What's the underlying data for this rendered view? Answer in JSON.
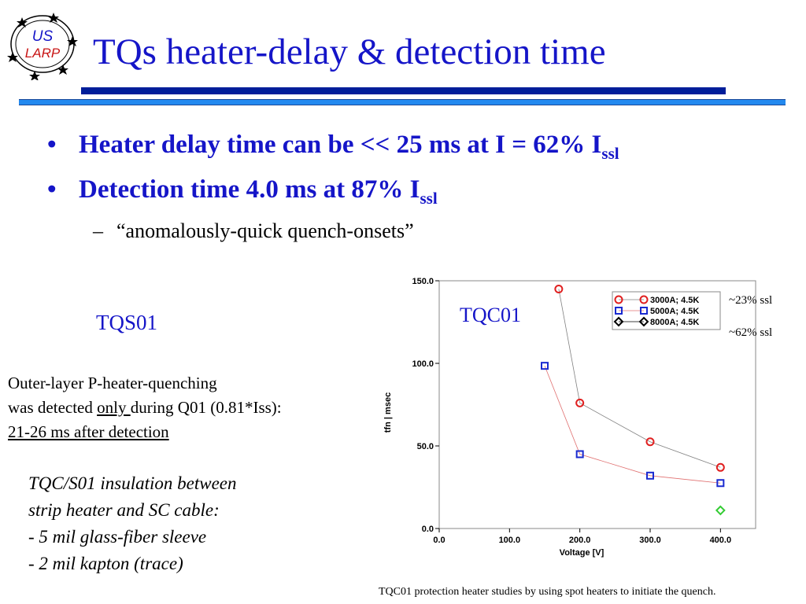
{
  "logo": {
    "line1": "US",
    "line2": "LARP"
  },
  "title": "TQs heater-delay & detection time",
  "bullets": [
    {
      "marker": "•",
      "text": "Heater delay time can be << 25 ms at I = 62% I",
      "sub": "ssl"
    },
    {
      "marker": "•",
      "text": "Detection time 4.0 ms at 87% I",
      "sub": "ssl"
    }
  ],
  "sub_bullet": {
    "marker": "–",
    "text": "“anomalously-quick quench-onsets”"
  },
  "tqs_label": "TQS01",
  "outer_text": {
    "line1": "Outer-layer P-heater-quenching",
    "line2_pre": "was detected ",
    "line2_u": "only ",
    "line2_post": "during Q01 (0.81*Iss):",
    "line3": "21-26 ms after detection"
  },
  "insulation": [
    "TQC/S01 insulation between",
    "strip heater and SC cable:",
    "- 5 mil glass-fiber sleeve",
    "- 2 mil kapton (trace)"
  ],
  "tqc_label": "TQC01",
  "ssl_labels": [
    "~23% ssl",
    "~62% ssl"
  ],
  "caption": "TQC01 protection heater studies by  using spot heaters to initiate the quench.",
  "chart_data": {
    "type": "line",
    "xlabel": "Voltage [V]",
    "ylabel": "tfn |  msec",
    "xlim": [
      0,
      450
    ],
    "ylim": [
      0,
      150
    ],
    "xticks": [
      "0.0",
      "100.0",
      "200.0",
      "300.0",
      "400.0"
    ],
    "yticks": [
      "0.0",
      "50.0",
      "100.0",
      "150.0"
    ],
    "legend_position": "top-right",
    "series": [
      {
        "name": "3000A; 4.5K",
        "marker": "circle",
        "color": "#e02020",
        "line_color": "#808080",
        "x": [
          170,
          200,
          300,
          400
        ],
        "y": [
          145,
          76,
          52.5,
          37
        ]
      },
      {
        "name": "5000A; 4.5K",
        "marker": "square",
        "color": "#1a2ad0",
        "line_color": "#e07070",
        "x": [
          150,
          200,
          300,
          400
        ],
        "y": [
          98.5,
          45,
          32,
          27.5
        ]
      },
      {
        "name": "8000A; 4.5K",
        "marker": "diamond",
        "color": "#000000",
        "line_color": "#000000",
        "x": [],
        "y": []
      },
      {
        "name": "",
        "marker": "diamond",
        "color": "#33cc33",
        "line_color": "none",
        "x": [
          400
        ],
        "y": [
          11
        ]
      }
    ]
  }
}
